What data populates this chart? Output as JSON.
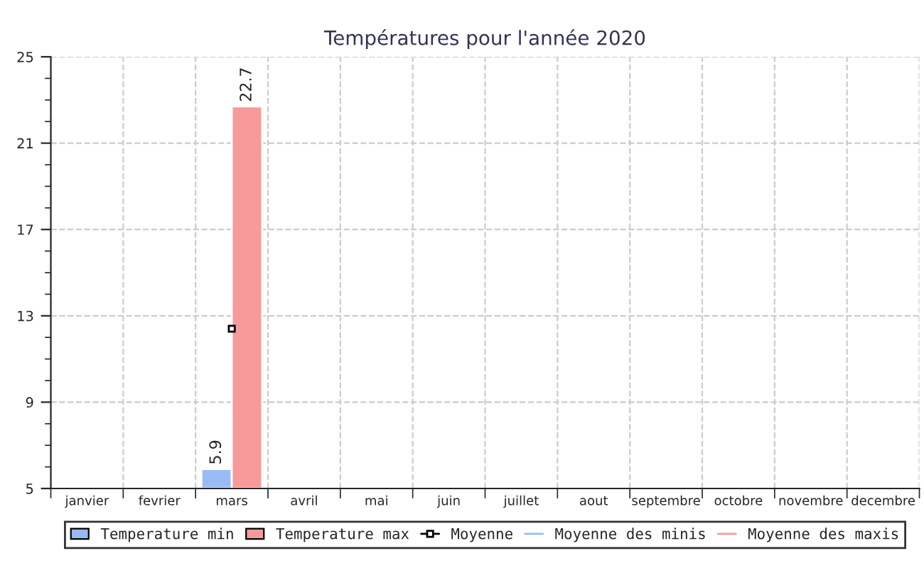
{
  "chart_data": {
    "type": "bar",
    "title": "Températures pour l'année 2020",
    "categories": [
      "janvier",
      "fevrier",
      "mars",
      "avril",
      "mai",
      "juin",
      "juillet",
      "aout",
      "septembre",
      "octobre",
      "novembre",
      "decembre"
    ],
    "series": [
      {
        "name": "Temperature min",
        "color": "#99bbf5",
        "values": [
          null,
          null,
          5.9,
          null,
          null,
          null,
          null,
          null,
          null,
          null,
          null,
          null
        ],
        "value_labels": [
          null,
          null,
          "5.9",
          null,
          null,
          null,
          null,
          null,
          null,
          null,
          null,
          null
        ]
      },
      {
        "name": "Temperature max",
        "color": "#f79a9a",
        "values": [
          null,
          null,
          22.7,
          null,
          null,
          null,
          null,
          null,
          null,
          null,
          null,
          null
        ],
        "value_labels": [
          null,
          null,
          "22.7",
          null,
          null,
          null,
          null,
          null,
          null,
          null,
          null,
          null
        ]
      },
      {
        "name": "Moyenne",
        "type": "line",
        "marker": "square",
        "color": "#000000",
        "values": [
          null,
          null,
          12.4,
          null,
          null,
          null,
          null,
          null,
          null,
          null,
          null,
          null
        ]
      },
      {
        "name": "Moyenne des minis",
        "type": "line",
        "marker": "none",
        "color": "#99bbf5",
        "values": [
          null,
          null,
          null,
          null,
          null,
          null,
          null,
          null,
          null,
          null,
          null,
          null
        ]
      },
      {
        "name": "Moyenne des maxis",
        "type": "line",
        "marker": "none",
        "color": "#f79a9a",
        "values": [
          null,
          null,
          null,
          null,
          null,
          null,
          null,
          null,
          null,
          null,
          null,
          null
        ]
      }
    ],
    "ylim": [
      5,
      25
    ],
    "yticks": [
      5,
      9,
      13,
      17,
      21,
      25
    ],
    "grid": true,
    "legend": "bottom"
  }
}
